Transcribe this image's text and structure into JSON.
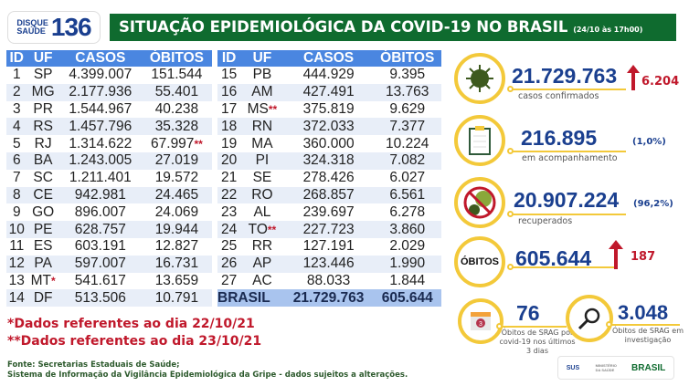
{
  "logo": {
    "line1": "DISQUE",
    "line2": "SAÚDE",
    "number": "136"
  },
  "header": {
    "title": "SITUAÇÃO EPIDEMIOLÓGICA DA COVID-19 NO BRASIL",
    "timestamp": "(24/10 às 17h00)"
  },
  "table": {
    "columns": [
      "ID",
      "UF",
      "CASOS",
      "ÓBITOS"
    ],
    "rows": [
      {
        "id": "1",
        "uf": "SP",
        "casos": "4.399.007",
        "obitos": "151.544"
      },
      {
        "id": "2",
        "uf": "MG",
        "casos": "2.177.936",
        "obitos": "55.401"
      },
      {
        "id": "3",
        "uf": "PR",
        "casos": "1.544.967",
        "obitos": "40.238"
      },
      {
        "id": "4",
        "uf": "RS",
        "casos": "1.457.796",
        "obitos": "35.328"
      },
      {
        "id": "5",
        "uf": "RJ",
        "casos": "1.314.622",
        "obitos": "67.997",
        "obitos_mark": "**"
      },
      {
        "id": "6",
        "uf": "BA",
        "casos": "1.243.005",
        "obitos": "27.019"
      },
      {
        "id": "7",
        "uf": "SC",
        "casos": "1.211.401",
        "obitos": "19.572"
      },
      {
        "id": "8",
        "uf": "CE",
        "casos": "942.981",
        "obitos": "24.465"
      },
      {
        "id": "9",
        "uf": "GO",
        "casos": "896.007",
        "obitos": "24.069"
      },
      {
        "id": "10",
        "uf": "PE",
        "casos": "628.757",
        "obitos": "19.944"
      },
      {
        "id": "11",
        "uf": "ES",
        "casos": "603.191",
        "obitos": "12.827"
      },
      {
        "id": "12",
        "uf": "PA",
        "casos": "597.007",
        "obitos": "16.731"
      },
      {
        "id": "13",
        "uf": "MT",
        "uf_mark": "*",
        "casos": "541.617",
        "obitos": "13.659"
      },
      {
        "id": "14",
        "uf": "DF",
        "casos": "513.506",
        "obitos": "10.791"
      },
      {
        "id": "15",
        "uf": "PB",
        "casos": "444.929",
        "obitos": "9.395"
      },
      {
        "id": "16",
        "uf": "AM",
        "casos": "427.491",
        "obitos": "13.763"
      },
      {
        "id": "17",
        "uf": "MS",
        "uf_mark": "**",
        "casos": "375.819",
        "obitos": "9.629"
      },
      {
        "id": "18",
        "uf": "RN",
        "casos": "372.033",
        "obitos": "7.377"
      },
      {
        "id": "19",
        "uf": "MA",
        "casos": "360.000",
        "obitos": "10.224"
      },
      {
        "id": "20",
        "uf": "PI",
        "casos": "324.318",
        "obitos": "7.082"
      },
      {
        "id": "21",
        "uf": "SE",
        "casos": "278.426",
        "obitos": "6.027"
      },
      {
        "id": "22",
        "uf": "RO",
        "casos": "268.857",
        "obitos": "6.561"
      },
      {
        "id": "23",
        "uf": "AL",
        "casos": "239.697",
        "obitos": "6.278"
      },
      {
        "id": "24",
        "uf": "TO",
        "uf_mark": "**",
        "casos": "227.723",
        "obitos": "3.860"
      },
      {
        "id": "25",
        "uf": "RR",
        "casos": "127.191",
        "obitos": "2.029"
      },
      {
        "id": "26",
        "uf": "AP",
        "casos": "123.446",
        "obitos": "1.990"
      },
      {
        "id": "27",
        "uf": "AC",
        "casos": "88.033",
        "obitos": "1.844"
      }
    ],
    "total": {
      "label": "BRASIL",
      "casos": "21.729.763",
      "obitos": "605.644"
    }
  },
  "stats": {
    "confirmed": {
      "value": "21.729.763",
      "label": "casos confirmados",
      "increase": "6.204",
      "icon": "virus-icon"
    },
    "monitoring": {
      "value": "216.895",
      "label": "em acompanhamento",
      "percent": "(1,0%)",
      "icon": "clipboard-icon"
    },
    "recovered": {
      "value": "20.907.224",
      "label": "recuperados",
      "percent": "(96,2%)",
      "icon": "no-virus-icon"
    },
    "deaths": {
      "circle_label": "ÓBITOS",
      "value": "605.644",
      "increase": "187"
    },
    "srag_recent": {
      "value": "76",
      "label_lines": [
        "Óbitos de SRAG por",
        "covid-19 nos últimos",
        "3 dias"
      ],
      "icon_text": "3",
      "icon": "calendar-icon"
    },
    "srag_investigation": {
      "value": "3.048",
      "label_lines": [
        "Óbitos de SRAG em",
        "investigação"
      ],
      "icon": "magnifier-icon"
    }
  },
  "notes": [
    "*Dados referentes ao dia 22/10/21",
    "**Dados referentes ao dia 23/10/21"
  ],
  "source": [
    "Fonte: Secretarias Estaduais de Saúde;",
    "Sistema de Informação da Vigilância Epidemiológica da Gripe - dados sujeitos a alterações."
  ],
  "footer": {
    "sus": "SUS",
    "ministry": "MINISTÉRIO DA SAÚDE",
    "gov": "BRASIL"
  },
  "colors": {
    "header_green": "#0f6b2f",
    "table_blue": "#4a86e0",
    "accent_yellow": "#f3c93a",
    "number_blue": "#1a3f8f",
    "alert_red": "#c0182b"
  }
}
